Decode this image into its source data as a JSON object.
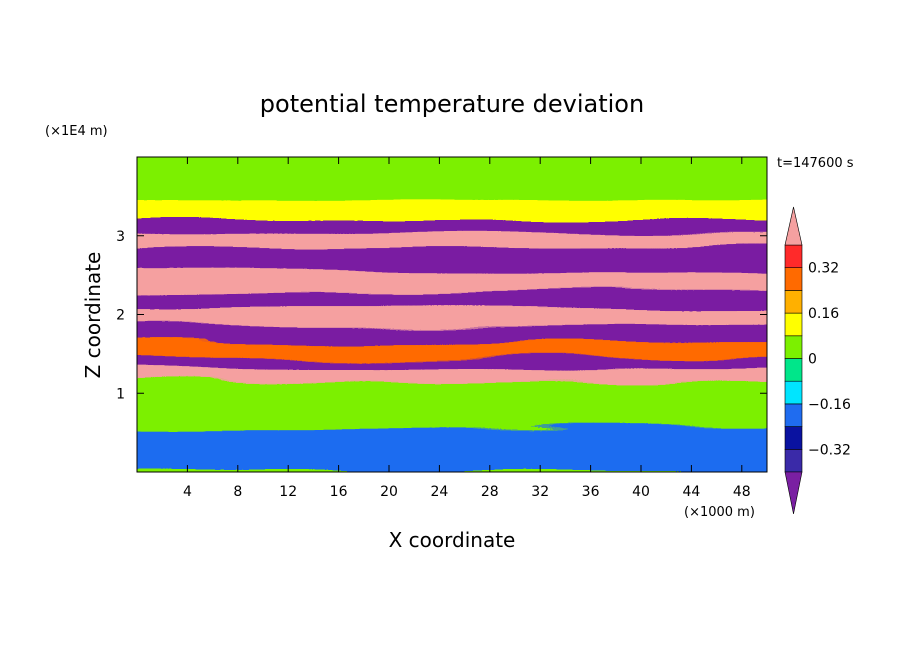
{
  "chart_data": {
    "type": "heatmap",
    "title": "potential temperature deviation",
    "time_label": "t=147600 s",
    "xlabel": "X coordinate",
    "ylabel": "Z coordinate",
    "x_unit": "(×1000 m)",
    "y_unit": "(×1E4 m)",
    "x_range": [
      0,
      50
    ],
    "y_range": [
      0,
      4
    ],
    "x_ticks": [
      "4",
      "8",
      "12",
      "16",
      "20",
      "24",
      "28",
      "32",
      "36",
      "40",
      "44",
      "48"
    ],
    "x_tick_values": [
      4,
      8,
      12,
      16,
      20,
      24,
      28,
      32,
      36,
      40,
      44,
      48
    ],
    "y_ticks": [
      "1",
      "2",
      "3"
    ],
    "y_tick_values": [
      1,
      2,
      3
    ],
    "colorbar": {
      "levels": [
        -0.4,
        -0.32,
        -0.24,
        -0.16,
        -0.08,
        0,
        0.08,
        0.16,
        0.24,
        0.32,
        0.4
      ],
      "tick_labels": [
        "0.32",
        "0.16",
        "0",
        "−0.16",
        "−0.32"
      ],
      "tick_values": [
        0.32,
        0.16,
        0,
        -0.16,
        -0.32
      ],
      "colors": [
        "#7a1fa2",
        "#3a2aa8",
        "#0a12a0",
        "#1f6cf0",
        "#00e5ff",
        "#00e68a",
        "#7cf000",
        "#ffff00",
        "#ffb000",
        "#ff6a00",
        "#ff2a2a",
        "#f5a0a0"
      ],
      "extend": "both"
    },
    "layers": [
      {
        "z": [
          3.45,
          3.9
        ],
        "value": 0.0
      },
      {
        "z": [
          3.2,
          3.45
        ],
        "value": 0.12
      },
      {
        "z": [
          3.05,
          3.2
        ],
        "value": -0.45
      },
      {
        "z": [
          2.85,
          3.05
        ],
        "value": 0.45
      },
      {
        "z": [
          2.55,
          2.85
        ],
        "value": -0.45
      },
      {
        "z": [
          2.3,
          2.55
        ],
        "value": 0.45
      },
      {
        "z": [
          2.05,
          2.3
        ],
        "value": -0.45
      },
      {
        "z": [
          1.85,
          2.05
        ],
        "value": 0.45
      },
      {
        "z": [
          1.65,
          1.85
        ],
        "value": -0.45
      },
      {
        "z": [
          1.45,
          1.65
        ],
        "value": 0.3
      },
      {
        "z": [
          1.3,
          1.45
        ],
        "value": -0.45
      },
      {
        "z": [
          1.15,
          1.3
        ],
        "value": 0.45
      },
      {
        "z": [
          0.55,
          1.15
        ],
        "value": 0.0
      },
      {
        "z": [
          0.0,
          0.55
        ],
        "value": -0.2
      }
    ]
  }
}
